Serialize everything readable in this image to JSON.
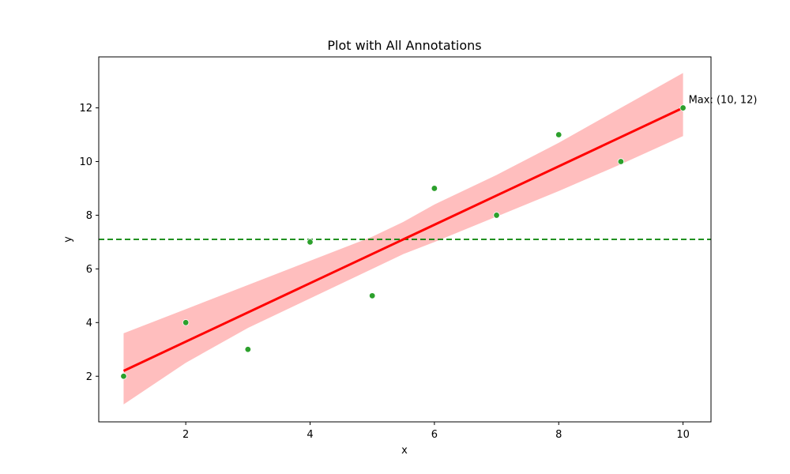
{
  "chart_data": {
    "type": "scatter",
    "title": "Plot with All Annotations",
    "xlabel": "x",
    "ylabel": "y",
    "xlim": [
      0.6,
      10.45
    ],
    "ylim": [
      0.3,
      13.9
    ],
    "xticks": [
      2,
      4,
      6,
      8,
      10
    ],
    "yticks": [
      2,
      4,
      6,
      8,
      10,
      12
    ],
    "grid": false,
    "points": {
      "x": [
        1,
        2,
        3,
        4,
        5,
        6,
        7,
        8,
        9,
        10
      ],
      "y": [
        2,
        4,
        3,
        7,
        5,
        9,
        8,
        11,
        10,
        12
      ],
      "color": "#2ca02c"
    },
    "regression": {
      "x": [
        1,
        10
      ],
      "y": [
        2.2,
        12.0
      ],
      "color": "#ff0000",
      "band_color": "#ffb3b3",
      "band_x": [
        1,
        2,
        3,
        4,
        5,
        5.5,
        6,
        7,
        8,
        9,
        10
      ],
      "band_lower": [
        0.95,
        2.5,
        3.8,
        4.9,
        6.0,
        6.55,
        7.0,
        7.95,
        8.9,
        9.9,
        10.95
      ],
      "band_upper": [
        3.6,
        4.5,
        5.4,
        6.3,
        7.2,
        7.75,
        8.4,
        9.5,
        10.7,
        12.0,
        13.3
      ]
    },
    "hline": {
      "y": 7.1,
      "color": "#008000",
      "style": "dashed"
    },
    "annotations": [
      {
        "text": "Max: (10, 12)",
        "x": 10,
        "y": 12
      }
    ]
  }
}
